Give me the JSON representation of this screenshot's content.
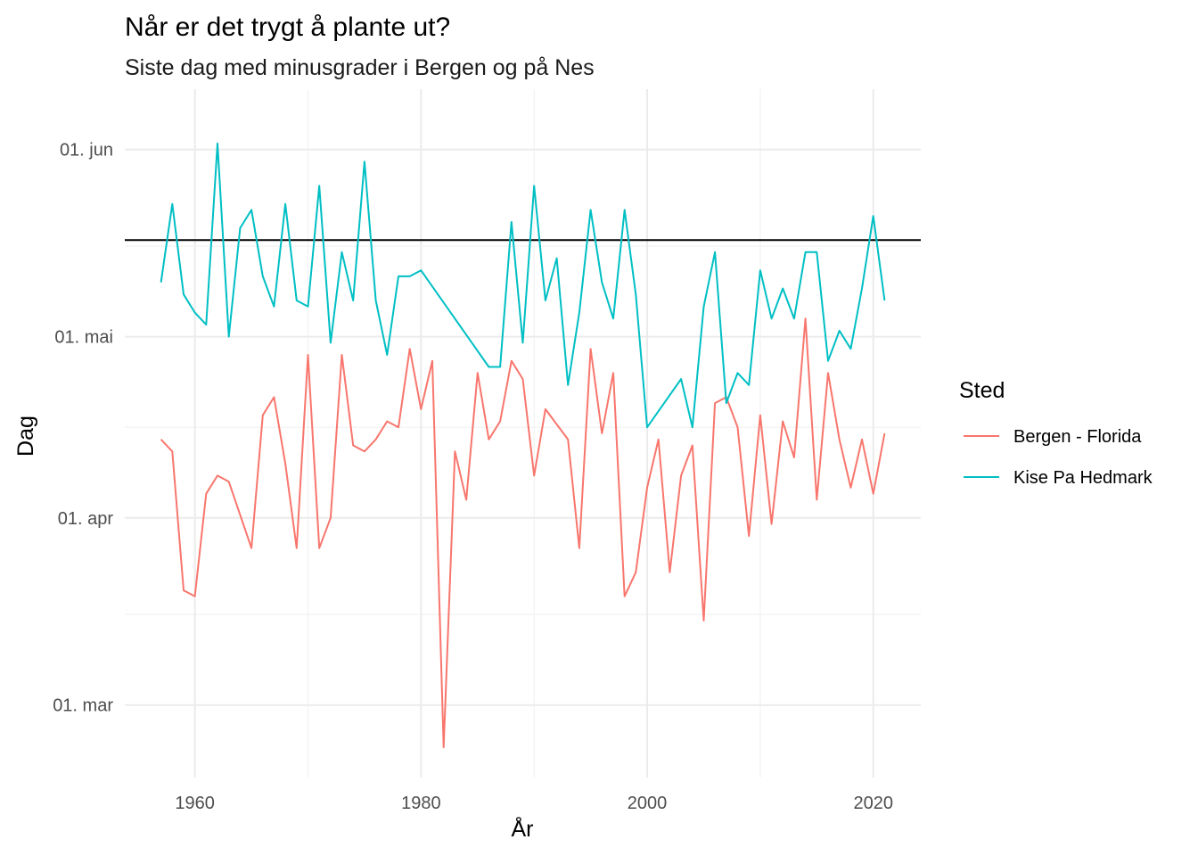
{
  "chart_data": {
    "type": "line",
    "title": "Når er det trygt å plante ut?",
    "subtitle": "Siste dag med minusgrader i Bergen og på Nes",
    "xlabel": "År",
    "ylabel": "Dag",
    "xlim": [
      1953.8,
      2024.2
    ],
    "ylim": [
      "2000-02-18",
      "2000-06-11"
    ],
    "x_ticks": [
      {
        "value": 1960,
        "label": "1960"
      },
      {
        "value": 1980,
        "label": "1980"
      },
      {
        "value": 2000,
        "label": "2000"
      },
      {
        "value": 2020,
        "label": "2020"
      }
    ],
    "y_ticks": [
      {
        "value": "2000-03-01",
        "label": "01. mar"
      },
      {
        "value": "2000-04-01",
        "label": "01. apr"
      },
      {
        "value": "2000-05-01",
        "label": "01. mai"
      },
      {
        "value": "2000-06-01",
        "label": "01. jun"
      }
    ],
    "x_minor": [
      1950,
      1970,
      1990,
      2010
    ],
    "y_minor": [
      "2000-03-16",
      "2000-04-16",
      "2000-05-16"
    ],
    "grid": true,
    "reference_line": {
      "y": "2000-05-17",
      "color": "#000000"
    },
    "legend": {
      "title": "Sted",
      "position": "right"
    },
    "series": [
      {
        "name": "Bergen - Florida",
        "color": "#F8766D",
        "points": [
          [
            1957,
            "2000-04-14"
          ],
          [
            1958,
            "2000-04-12"
          ],
          [
            1959,
            "2000-03-20"
          ],
          [
            1960,
            "2000-03-19"
          ],
          [
            1961,
            "2000-04-05"
          ],
          [
            1962,
            "2000-04-08"
          ],
          [
            1963,
            "2000-04-07"
          ],
          [
            1965,
            "2000-03-27"
          ],
          [
            1966,
            "2000-04-18"
          ],
          [
            1967,
            "2000-04-21"
          ],
          [
            1968,
            "2000-04-10"
          ],
          [
            1969,
            "2000-03-27"
          ],
          [
            1970,
            "2000-04-28"
          ],
          [
            1971,
            "2000-03-27"
          ],
          [
            1972,
            "2000-04-01"
          ],
          [
            1973,
            "2000-04-28"
          ],
          [
            1974,
            "2000-04-13"
          ],
          [
            1975,
            "2000-04-12"
          ],
          [
            1976,
            "2000-04-14"
          ],
          [
            1977,
            "2000-04-17"
          ],
          [
            1978,
            "2000-04-16"
          ],
          [
            1979,
            "2000-04-29"
          ],
          [
            1980,
            "2000-04-19"
          ],
          [
            1981,
            "2000-04-27"
          ],
          [
            1982,
            "2000-02-23"
          ],
          [
            1983,
            "2000-04-12"
          ],
          [
            1984,
            "2000-04-04"
          ],
          [
            1985,
            "2000-04-25"
          ],
          [
            1986,
            "2000-04-14"
          ],
          [
            1987,
            "2000-04-17"
          ],
          [
            1988,
            "2000-04-27"
          ],
          [
            1989,
            "2000-04-24"
          ],
          [
            1990,
            "2000-04-08"
          ],
          [
            1991,
            "2000-04-19"
          ],
          [
            1993,
            "2000-04-14"
          ],
          [
            1994,
            "2000-03-27"
          ],
          [
            1995,
            "2000-04-29"
          ],
          [
            1996,
            "2000-04-15"
          ],
          [
            1997,
            "2000-04-25"
          ],
          [
            1998,
            "2000-03-19"
          ],
          [
            1999,
            "2000-03-23"
          ],
          [
            2000,
            "2000-04-06"
          ],
          [
            2001,
            "2000-04-14"
          ],
          [
            2002,
            "2000-03-23"
          ],
          [
            2003,
            "2000-04-08"
          ],
          [
            2004,
            "2000-04-13"
          ],
          [
            2005,
            "2000-03-15"
          ],
          [
            2006,
            "2000-04-20"
          ],
          [
            2007,
            "2000-04-21"
          ],
          [
            2008,
            "2000-04-16"
          ],
          [
            2009,
            "2000-03-29"
          ],
          [
            2010,
            "2000-04-18"
          ],
          [
            2011,
            "2000-03-31"
          ],
          [
            2012,
            "2000-04-17"
          ],
          [
            2013,
            "2000-04-11"
          ],
          [
            2014,
            "2000-05-04"
          ],
          [
            2015,
            "2000-04-04"
          ],
          [
            2016,
            "2000-04-25"
          ],
          [
            2017,
            "2000-04-14"
          ],
          [
            2018,
            "2000-04-06"
          ],
          [
            2019,
            "2000-04-14"
          ],
          [
            2020,
            "2000-04-05"
          ],
          [
            2021,
            "2000-04-15"
          ]
        ]
      },
      {
        "name": "Kise Pa Hedmark",
        "color": "#00BFC4",
        "points": [
          [
            1957,
            "2000-05-10"
          ],
          [
            1958,
            "2000-05-23"
          ],
          [
            1959,
            "2000-05-08"
          ],
          [
            1960,
            "2000-05-05"
          ],
          [
            1961,
            "2000-05-03"
          ],
          [
            1962,
            "2000-06-02"
          ],
          [
            1963,
            "2000-05-01"
          ],
          [
            1964,
            "2000-05-19"
          ],
          [
            1965,
            "2000-05-22"
          ],
          [
            1966,
            "2000-05-11"
          ],
          [
            1967,
            "2000-05-06"
          ],
          [
            1968,
            "2000-05-23"
          ],
          [
            1969,
            "2000-05-07"
          ],
          [
            1970,
            "2000-05-06"
          ],
          [
            1971,
            "2000-05-26"
          ],
          [
            1972,
            "2000-04-30"
          ],
          [
            1973,
            "2000-05-15"
          ],
          [
            1974,
            "2000-05-07"
          ],
          [
            1975,
            "2000-05-30"
          ],
          [
            1976,
            "2000-05-07"
          ],
          [
            1977,
            "2000-04-28"
          ],
          [
            1978,
            "2000-05-11"
          ],
          [
            1979,
            "2000-05-11"
          ],
          [
            1980,
            "2000-05-12"
          ],
          [
            1986,
            "2000-04-26"
          ],
          [
            1987,
            "2000-04-26"
          ],
          [
            1988,
            "2000-05-20"
          ],
          [
            1989,
            "2000-04-30"
          ],
          [
            1990,
            "2000-05-26"
          ],
          [
            1991,
            "2000-05-07"
          ],
          [
            1992,
            "2000-05-14"
          ],
          [
            1993,
            "2000-04-23"
          ],
          [
            1994,
            "2000-05-05"
          ],
          [
            1995,
            "2000-05-22"
          ],
          [
            1996,
            "2000-05-10"
          ],
          [
            1997,
            "2000-05-04"
          ],
          [
            1998,
            "2000-05-22"
          ],
          [
            1999,
            "2000-05-08"
          ],
          [
            2000,
            "2000-04-16"
          ],
          [
            2003,
            "2000-04-24"
          ],
          [
            2004,
            "2000-04-16"
          ],
          [
            2005,
            "2000-05-06"
          ],
          [
            2006,
            "2000-05-15"
          ],
          [
            2007,
            "2000-04-20"
          ],
          [
            2008,
            "2000-04-25"
          ],
          [
            2009,
            "2000-04-23"
          ],
          [
            2010,
            "2000-05-12"
          ],
          [
            2011,
            "2000-05-04"
          ],
          [
            2012,
            "2000-05-09"
          ],
          [
            2013,
            "2000-05-04"
          ],
          [
            2014,
            "2000-05-15"
          ],
          [
            2015,
            "2000-05-15"
          ],
          [
            2016,
            "2000-04-27"
          ],
          [
            2017,
            "2000-05-02"
          ],
          [
            2018,
            "2000-04-29"
          ],
          [
            2019,
            "2000-05-09"
          ],
          [
            2020,
            "2000-05-21"
          ],
          [
            2021,
            "2000-05-07"
          ]
        ]
      }
    ]
  }
}
